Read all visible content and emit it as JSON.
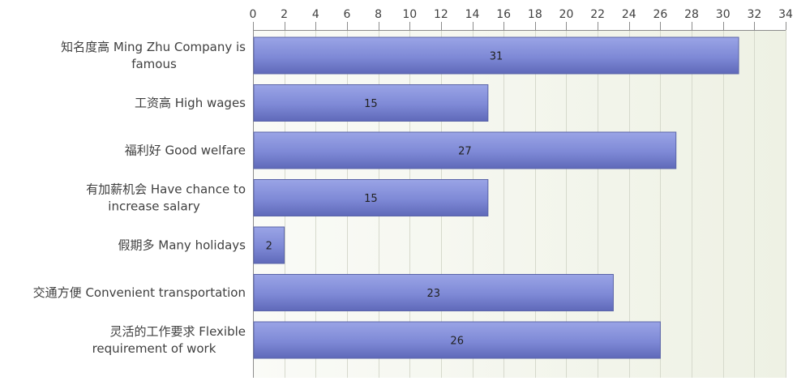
{
  "chart_data": {
    "type": "bar",
    "orientation": "horizontal",
    "title": "",
    "xlabel": "",
    "ylabel": "",
    "categories": [
      "知名度高 Ming Zhu Company is famous",
      "工资高 High wages",
      "福利好 Good welfare",
      "有加薪机会 Have chance to increase salary",
      "假期多 Many holidays",
      "交通方便 Convenient transportation",
      "灵活的工作要求 Flexible requirement of work"
    ],
    "category_lines": [
      [
        "知名度高 Ming Zhu Company is",
        "famous"
      ],
      [
        "工资高 High wages"
      ],
      [
        "福利好 Good welfare"
      ],
      [
        "有加薪机会 Have chance to",
        "increase salary"
      ],
      [
        "假期多 Many holidays"
      ],
      [
        "交通方便 Convenient transportation"
      ],
      [
        "灵活的工作要求 Flexible",
        "requirement of work"
      ]
    ],
    "values": [
      31,
      15,
      27,
      15,
      2,
      23,
      26
    ],
    "xlim": [
      0,
      34
    ],
    "xticks": [
      0,
      2,
      4,
      6,
      8,
      10,
      12,
      14,
      16,
      18,
      20,
      22,
      24,
      26,
      28,
      30,
      32,
      34
    ],
    "axis_position": "top",
    "grid": true,
    "legend": "none",
    "colors": {
      "bar_top": "#9aa4e6",
      "bar_mid": "#7e89d6",
      "bar_bottom": "#5f69b9",
      "bar_stroke": "#5a64a8",
      "plot_bg_left": "#fafbf7",
      "plot_bg_right": "#eef1e4",
      "grid": "#d6d9cc",
      "axis": "#8c8c8c",
      "text": "#404040",
      "value_text": "#222222"
    }
  }
}
